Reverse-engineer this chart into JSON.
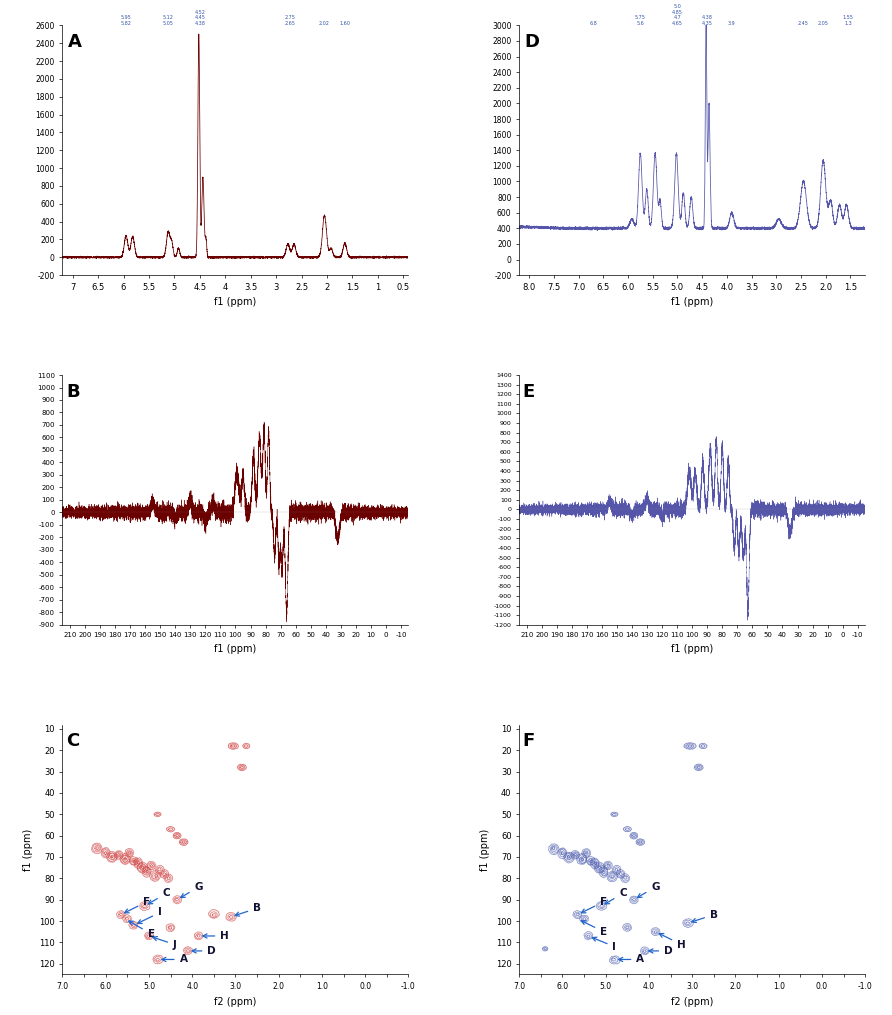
{
  "color_left": "#6B0000",
  "color_right": "#5555AA",
  "panel_A": {
    "xlim": [
      7.2,
      0.4
    ],
    "ylim": [
      -200,
      2600
    ],
    "xlabel": "f1 (ppm)",
    "yticks": [
      -200,
      0,
      200,
      400,
      600,
      800,
      1000,
      1200,
      1400,
      1600,
      1800,
      2000,
      2200,
      2400,
      2600
    ],
    "xticks": [
      7.0,
      6.5,
      6.0,
      5.5,
      5.0,
      4.5,
      4.0,
      3.5,
      3.0,
      2.5,
      2.0,
      1.5,
      1.0,
      0.5
    ]
  },
  "panel_B": {
    "xlim": [
      215,
      -15
    ],
    "ylim": [
      -900,
      1100
    ],
    "xlabel": "f1 (ppm)",
    "yticks": [
      -900,
      -800,
      -700,
      -600,
      -500,
      -400,
      -300,
      -200,
      -100,
      0,
      100,
      200,
      300,
      400,
      500,
      600,
      700,
      800,
      900,
      1000,
      1100
    ],
    "xticks": [
      210,
      200,
      190,
      180,
      170,
      160,
      150,
      140,
      130,
      120,
      110,
      100,
      90,
      80,
      70,
      60,
      50,
      40,
      30,
      20,
      10,
      0,
      -10
    ]
  },
  "panel_C": {
    "xlim": [
      7.0,
      -1.0
    ],
    "ylim": [
      125,
      8
    ],
    "xlabel": "f2 (ppm)",
    "ylabel": "f1 (ppm)",
    "yticks": [
      10,
      20,
      30,
      40,
      50,
      60,
      70,
      80,
      90,
      100,
      110,
      120
    ],
    "xticks": [
      7.0,
      6.5,
      6.0,
      5.5,
      5.0,
      4.5,
      4.0,
      3.5,
      3.0,
      2.5,
      2.0,
      1.5,
      1.0,
      0.5,
      0.0,
      -0.5,
      -1.0
    ]
  },
  "panel_D": {
    "xlim": [
      8.2,
      1.2
    ],
    "ylim": [
      -200,
      3000
    ],
    "xlabel": "f1 (ppm)",
    "yticks": [
      -200,
      0,
      200,
      400,
      600,
      800,
      1000,
      1200,
      1400,
      1600,
      1800,
      2000,
      2200,
      2400,
      2600,
      2800,
      3000
    ],
    "xticks": [
      8.0,
      7.5,
      7.0,
      6.5,
      6.0,
      5.5,
      5.0,
      4.5,
      4.0,
      3.5,
      3.0,
      2.5,
      2.0,
      1.5
    ]
  },
  "panel_E": {
    "xlim": [
      215,
      -15
    ],
    "ylim": [
      -1200,
      1400
    ],
    "xlabel": "f1 (ppm)",
    "yticks": [
      -1200,
      -1100,
      -1000,
      -900,
      -800,
      -700,
      -600,
      -500,
      -400,
      -300,
      -200,
      -100,
      0,
      100,
      200,
      300,
      400,
      500,
      600,
      700,
      800,
      900,
      1000,
      1100,
      1200,
      1300,
      1400
    ],
    "xticks": [
      210,
      200,
      190,
      180,
      170,
      160,
      150,
      140,
      130,
      120,
      110,
      100,
      90,
      80,
      70,
      60,
      50,
      40,
      30,
      20,
      10,
      0,
      -10
    ]
  },
  "panel_F": {
    "xlim": [
      7.0,
      -1.0
    ],
    "ylim": [
      125,
      8
    ],
    "xlabel": "f2 (ppm)",
    "ylabel": "f1 (ppm)",
    "yticks": [
      10,
      20,
      30,
      40,
      50,
      60,
      70,
      80,
      90,
      100,
      110,
      120
    ],
    "xticks": [
      7.0,
      6.5,
      6.0,
      5.5,
      5.0,
      4.5,
      4.0,
      3.5,
      3.0,
      2.5,
      2.0,
      1.5,
      1.0,
      0.5,
      0.0,
      -0.5,
      -1.0
    ]
  }
}
